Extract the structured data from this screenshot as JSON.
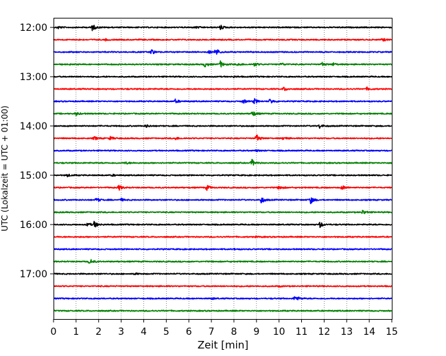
{
  "chart_data": {
    "type": "line",
    "subtype": "helicorder",
    "xlabel": "Zeit  [min]",
    "ylabel": "UTC (Lokalzeit = UTC + 01:00)",
    "xlim": [
      0,
      15
    ],
    "x_ticks": [
      "0",
      "1",
      "2",
      "3",
      "4",
      "5",
      "6",
      "7",
      "8",
      "9",
      "10",
      "11",
      "12",
      "13",
      "14",
      "15"
    ],
    "y_ticks": [
      "12:00",
      "13:00",
      "14:00",
      "15:00",
      "16:00",
      "17:00"
    ],
    "trace_interval_min": 15,
    "start_time": "12:00",
    "trace_count": 24,
    "trace_colors": [
      "#000000",
      "#ff0000",
      "#0000ff",
      "#008000"
    ],
    "grid": "x, dotted",
    "traces": [
      {
        "time": "12:00",
        "events": [
          {
            "x": 0.2,
            "a": 0.5
          },
          {
            "x": 1.7,
            "a": 1.3
          },
          {
            "x": 6.3,
            "a": 0.4
          },
          {
            "x": 7.4,
            "a": 0.8
          }
        ]
      },
      {
        "time": "12:15",
        "events": [
          {
            "x": 2.3,
            "a": 0.3
          },
          {
            "x": 14.6,
            "a": 0.5
          }
        ]
      },
      {
        "time": "12:30",
        "events": [
          {
            "x": 4.3,
            "a": 1.3
          },
          {
            "x": 6.9,
            "a": 0.5
          },
          {
            "x": 7.2,
            "a": 1.3
          }
        ]
      },
      {
        "time": "12:45",
        "events": [
          {
            "x": 6.7,
            "a": 1.0
          },
          {
            "x": 7.4,
            "a": 1.1
          },
          {
            "x": 8.2,
            "a": 0.5
          },
          {
            "x": 8.9,
            "a": 0.7
          },
          {
            "x": 10.1,
            "a": 0.6
          },
          {
            "x": 11.9,
            "a": 0.6
          },
          {
            "x": 12.4,
            "a": 0.5
          }
        ]
      },
      {
        "time": "13:00",
        "events": [
          {
            "x": 8.0,
            "a": 0.2
          }
        ]
      },
      {
        "time": "13:15",
        "events": [
          {
            "x": 10.2,
            "a": 0.8
          },
          {
            "x": 13.9,
            "a": 0.5
          }
        ]
      },
      {
        "time": "13:30",
        "events": [
          {
            "x": 5.4,
            "a": 0.7
          },
          {
            "x": 8.4,
            "a": 0.8
          },
          {
            "x": 8.9,
            "a": 0.9
          },
          {
            "x": 9.6,
            "a": 1.0
          }
        ]
      },
      {
        "time": "13:45",
        "events": [
          {
            "x": 1.0,
            "a": 0.6
          },
          {
            "x": 8.8,
            "a": 1.2
          }
        ]
      },
      {
        "time": "14:00",
        "events": [
          {
            "x": 4.1,
            "a": 0.5
          },
          {
            "x": 11.8,
            "a": 0.8
          }
        ]
      },
      {
        "time": "14:15",
        "events": [
          {
            "x": 1.8,
            "a": 0.6
          },
          {
            "x": 2.5,
            "a": 0.6
          },
          {
            "x": 5.4,
            "a": 0.5
          },
          {
            "x": 9.0,
            "a": 1.3
          },
          {
            "x": 10.2,
            "a": 0.6
          }
        ]
      },
      {
        "time": "14:30",
        "events": [
          {
            "x": 9.0,
            "a": 0.3
          }
        ]
      },
      {
        "time": "14:45",
        "events": [
          {
            "x": 3.2,
            "a": 0.4
          },
          {
            "x": 8.8,
            "a": 1.2
          }
        ]
      },
      {
        "time": "15:00",
        "events": [
          {
            "x": 0.6,
            "a": 0.5
          },
          {
            "x": 2.6,
            "a": 0.3
          }
        ]
      },
      {
        "time": "15:15",
        "events": [
          {
            "x": 2.9,
            "a": 0.9
          },
          {
            "x": 6.8,
            "a": 0.9
          },
          {
            "x": 10.0,
            "a": 0.8
          },
          {
            "x": 12.8,
            "a": 0.8
          }
        ]
      },
      {
        "time": "15:30",
        "events": [
          {
            "x": 1.9,
            "a": 0.8
          },
          {
            "x": 3.0,
            "a": 0.5
          },
          {
            "x": 9.2,
            "a": 1.3
          },
          {
            "x": 11.4,
            "a": 1.3
          }
        ]
      },
      {
        "time": "15:45",
        "events": [
          {
            "x": 13.7,
            "a": 0.9
          }
        ]
      },
      {
        "time": "16:00",
        "events": [
          {
            "x": 1.5,
            "a": 0.7
          },
          {
            "x": 1.8,
            "a": 1.2
          },
          {
            "x": 11.8,
            "a": 1.1
          }
        ]
      },
      {
        "time": "16:15",
        "events": [
          {
            "x": 9.0,
            "a": 0.2
          }
        ]
      },
      {
        "time": "16:30",
        "events": [
          {
            "x": 8.0,
            "a": 0.2
          }
        ]
      },
      {
        "time": "16:45",
        "events": [
          {
            "x": 1.6,
            "a": 1.0
          }
        ]
      },
      {
        "time": "17:00",
        "events": [
          {
            "x": 3.6,
            "a": 0.3
          }
        ]
      },
      {
        "time": "17:15",
        "events": [
          {
            "x": 10.0,
            "a": 0.2
          }
        ]
      },
      {
        "time": "17:30",
        "events": [
          {
            "x": 7.0,
            "a": 0.3
          },
          {
            "x": 10.7,
            "a": 1.3
          }
        ]
      },
      {
        "time": "17:45",
        "events": []
      }
    ]
  }
}
